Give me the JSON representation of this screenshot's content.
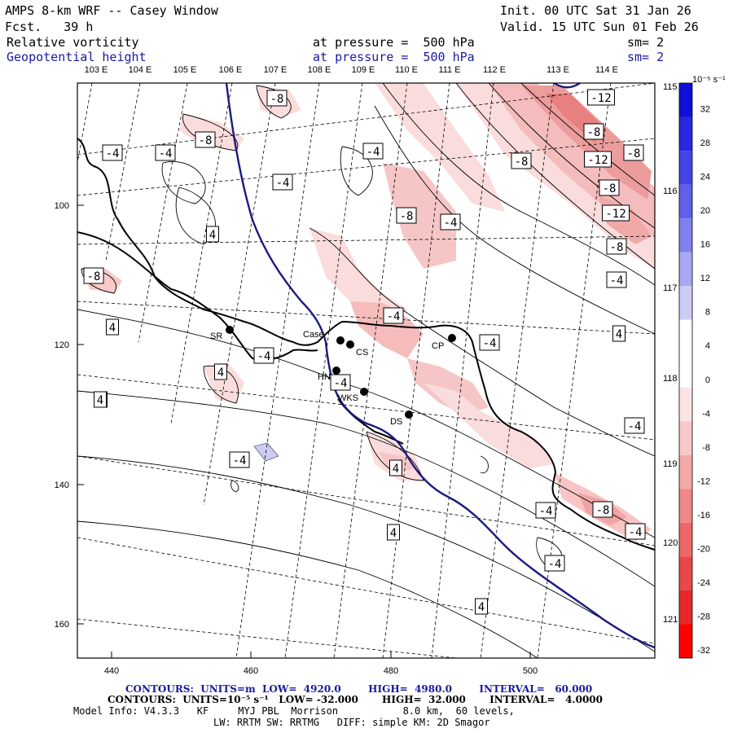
{
  "header": {
    "model": "AMPS 8-km WRF -- Casey Window",
    "init": "Init. 00 UTC Sat 31 Jan 26",
    "fcst": "Fcst.   39 h",
    "valid": "Valid. 15 UTC Sun 01 Feb 26",
    "field1": {
      "name": "Relative vorticity",
      "level": "at pressure =  500 hPa",
      "sm": "sm= 2"
    },
    "field2": {
      "name": "Geopotential height",
      "level": "at pressure =  500 hPa",
      "sm": "sm= 2"
    }
  },
  "map": {
    "lon_top_labels": [
      "103 E",
      "104 E",
      "105 E",
      "106 E",
      "107 E",
      "108 E",
      "109 E",
      "110 E",
      "111 E",
      "112 E",
      "113 E",
      "114 E"
    ],
    "lon_right_labels": [
      "115 E",
      "116 E",
      "117 E",
      "118 E",
      "119 E",
      "120 E",
      "121 E"
    ],
    "x_ticks": [
      "440",
      "460",
      "480",
      "500"
    ],
    "y_ticks": [
      "100",
      "120",
      "140",
      "160"
    ],
    "stations": [
      {
        "code": "SR",
        "name": "SR"
      },
      {
        "code": "Case",
        "name": "Case"
      },
      {
        "code": "CS",
        "name": "CS"
      },
      {
        "code": "HN",
        "name": "HN"
      },
      {
        "code": "WKS",
        "name": "WKS"
      },
      {
        "code": "CP",
        "name": "CP"
      },
      {
        "code": "DS",
        "name": "DS"
      }
    ],
    "contour_labels": [
      "-8",
      "-4",
      "-4",
      "-8",
      "-4",
      "-4",
      "-8",
      "-12",
      "-8",
      "-12",
      "-8",
      "-8",
      "-12",
      "-8",
      "4",
      "-4",
      "-8",
      "-4",
      "-8",
      "4",
      "4",
      "-4",
      "-4",
      "-4",
      "4",
      "-4",
      "4",
      "-4",
      "-4",
      "4",
      "-4",
      "-8",
      "4",
      "-4",
      "-4",
      "4",
      "4"
    ]
  },
  "colorbar": {
    "units": "10⁻⁵ s⁻¹",
    "values": [
      32,
      28,
      24,
      20,
      16,
      12,
      8,
      4,
      0,
      -4,
      -8,
      -12,
      -16,
      -20,
      -24,
      -28,
      -32
    ],
    "colors": [
      "#1010d8",
      "#2828e0",
      "#4444e4",
      "#6060e8",
      "#8080ee",
      "#a8a8f4",
      "#ccccf8",
      "#ffffff",
      "#ffffff",
      "#fce4e4",
      "#f8c8c8",
      "#f4a8a8",
      "#f08888",
      "#ec6868",
      "#e84848",
      "#e42828",
      "#ff0000"
    ]
  },
  "footer": {
    "contours1": "CONTOURS:  UNITS=m  LOW=  4920.0        HIGH=  4980.0        INTERVAL=   60.000",
    "contours2": "CONTOURS:  UNITS=10⁻⁵ s⁻¹   LOW= -32.000       HIGH=  32.000       INTERVAL=   4.0000",
    "model_info": "Model Info: V4.3.3   KF     MYJ PBL  Morrison           8.0 km,  60 levels,",
    "model_info2": "LW: RRTM SW: RRTMG   DIFF: simple KM: 2D Smagor"
  }
}
